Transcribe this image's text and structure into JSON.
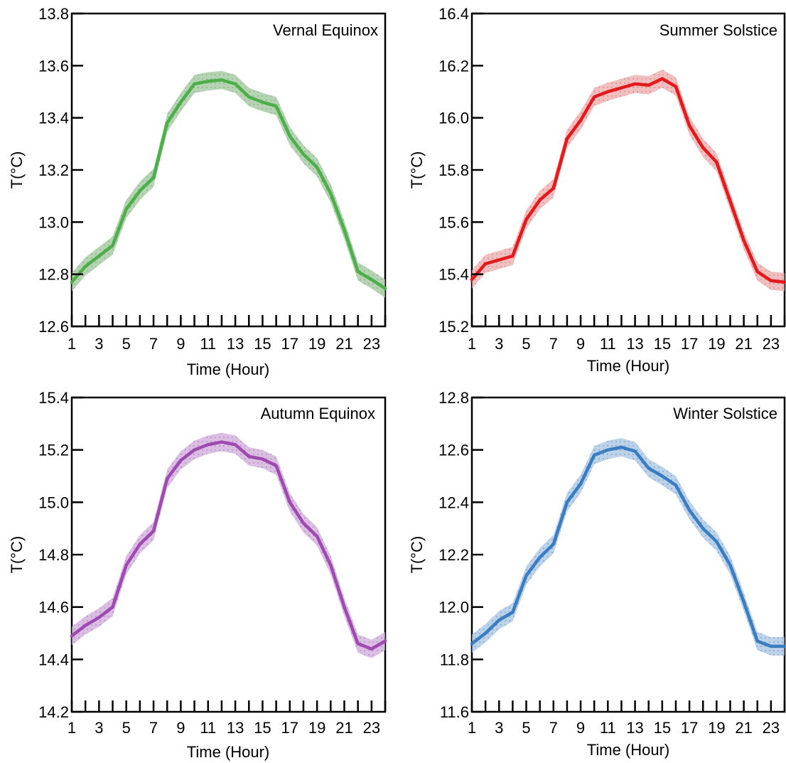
{
  "chart_data": [
    {
      "type": "line",
      "title": "Vernal Equinox",
      "xlabel": "Time (Hour)",
      "ylabel": "T(°C)",
      "xlim": [
        1,
        24
      ],
      "ylim": [
        12.6,
        13.8
      ],
      "xticks": [
        1,
        3,
        5,
        7,
        9,
        11,
        13,
        15,
        17,
        19,
        21,
        23
      ],
      "yticks": [
        "12.6",
        "12.8",
        "13.0",
        "13.2",
        "13.4",
        "13.6",
        "13.8"
      ],
      "x": [
        1,
        2,
        3,
        4,
        5,
        6,
        7,
        8,
        9,
        10,
        11,
        12,
        13,
        14,
        15,
        16,
        17,
        18,
        19,
        20,
        21,
        22,
        23,
        24
      ],
      "values": [
        12.77,
        12.83,
        12.87,
        12.91,
        13.05,
        13.12,
        13.17,
        13.38,
        13.46,
        13.53,
        13.54,
        13.545,
        13.53,
        13.48,
        13.46,
        13.445,
        13.33,
        13.26,
        13.21,
        13.11,
        12.97,
        12.81,
        12.78,
        12.745
      ],
      "band": 0.035,
      "color": "#4daf4a",
      "band_color": "#9dc49b",
      "title_position": "top-right",
      "grid": false
    },
    {
      "type": "line",
      "title": "Summer Solstice",
      "xlabel": "Time (Hour)",
      "ylabel": "T(°C)",
      "xlim": [
        1,
        24
      ],
      "ylim": [
        15.2,
        16.4
      ],
      "xticks": [
        1,
        3,
        5,
        7,
        9,
        11,
        13,
        15,
        17,
        19,
        21,
        23
      ],
      "yticks": [
        "15.2",
        "15.4",
        "15.6",
        "15.8",
        "16.0",
        "16.2",
        "16.4"
      ],
      "x": [
        1,
        2,
        3,
        4,
        5,
        6,
        7,
        8,
        9,
        10,
        11,
        12,
        13,
        14,
        15,
        16,
        17,
        18,
        19,
        20,
        21,
        22,
        23,
        24
      ],
      "values": [
        15.38,
        15.44,
        15.455,
        15.47,
        15.61,
        15.685,
        15.73,
        15.92,
        15.99,
        16.08,
        16.1,
        16.115,
        16.13,
        16.125,
        16.15,
        16.12,
        15.97,
        15.885,
        15.83,
        15.68,
        15.53,
        15.41,
        15.375,
        15.37
      ],
      "band": 0.035,
      "color": "#e31a1c",
      "band_color": "#eba9a9",
      "title_position": "top-right",
      "grid": false
    },
    {
      "type": "line",
      "title": "Autumn Equinox",
      "xlabel": "Time (Hour)",
      "ylabel": "T(°C)",
      "xlim": [
        1,
        24
      ],
      "ylim": [
        14.2,
        15.4
      ],
      "xticks": [
        1,
        3,
        5,
        7,
        9,
        11,
        13,
        15,
        17,
        19,
        21,
        23
      ],
      "yticks": [
        "14.2",
        "14.4",
        "14.6",
        "14.8",
        "15.0",
        "15.2",
        "15.4"
      ],
      "x": [
        1,
        2,
        3,
        4,
        5,
        6,
        7,
        8,
        9,
        10,
        11,
        12,
        13,
        14,
        15,
        16,
        17,
        18,
        19,
        20,
        21,
        22,
        23,
        24
      ],
      "values": [
        14.49,
        14.53,
        14.56,
        14.6,
        14.76,
        14.84,
        14.89,
        15.09,
        15.16,
        15.2,
        15.22,
        15.23,
        15.22,
        15.175,
        15.165,
        15.14,
        15.0,
        14.92,
        14.87,
        14.76,
        14.6,
        14.46,
        14.44,
        14.47
      ],
      "band": 0.035,
      "color": "#9e4ab0",
      "band_color": "#cfa9d8",
      "title_position": "top-right",
      "grid": false
    },
    {
      "type": "line",
      "title": "Winter Solstice",
      "xlabel": "Time (Hour)",
      "ylabel": "T(°C)",
      "xlim": [
        1,
        24
      ],
      "ylim": [
        11.6,
        12.8
      ],
      "xticks": [
        1,
        3,
        5,
        7,
        9,
        11,
        13,
        15,
        17,
        19,
        21,
        23
      ],
      "yticks": [
        "11.6",
        "11.8",
        "12.0",
        "12.2",
        "12.4",
        "12.6",
        "12.8"
      ],
      "x": [
        1,
        2,
        3,
        4,
        5,
        6,
        7,
        8,
        9,
        10,
        11,
        12,
        13,
        14,
        15,
        16,
        17,
        18,
        19,
        20,
        21,
        22,
        23,
        24
      ],
      "values": [
        11.86,
        11.9,
        11.95,
        11.98,
        12.12,
        12.19,
        12.24,
        12.4,
        12.47,
        12.58,
        12.6,
        12.61,
        12.595,
        12.53,
        12.5,
        12.465,
        12.37,
        12.3,
        12.25,
        12.16,
        12.02,
        11.87,
        11.85,
        11.85
      ],
      "band": 0.035,
      "color": "#3a7dc0",
      "band_color": "#a6c3e2",
      "title_position": "top-right",
      "grid": false
    }
  ]
}
